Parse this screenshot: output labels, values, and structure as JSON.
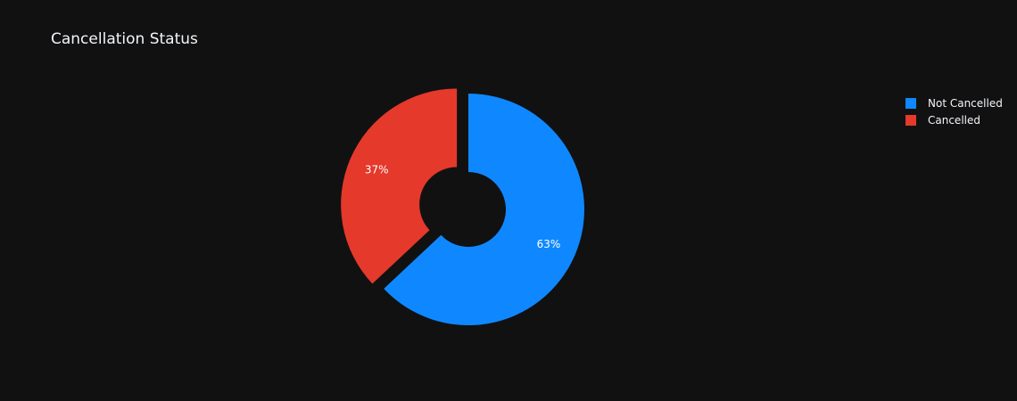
{
  "chart_data": {
    "type": "pie",
    "hole": true,
    "title": "Cancellation Status",
    "legend_position": "top-right",
    "series": [
      {
        "slices": [
          {
            "label": "Not Cancelled",
            "value": 63,
            "text": "63%",
            "color": "#0f88ff",
            "pulled": false
          },
          {
            "label": "Cancelled",
            "value": 37,
            "text": "37%",
            "color": "#e4392b",
            "pulled": true
          }
        ]
      }
    ]
  }
}
